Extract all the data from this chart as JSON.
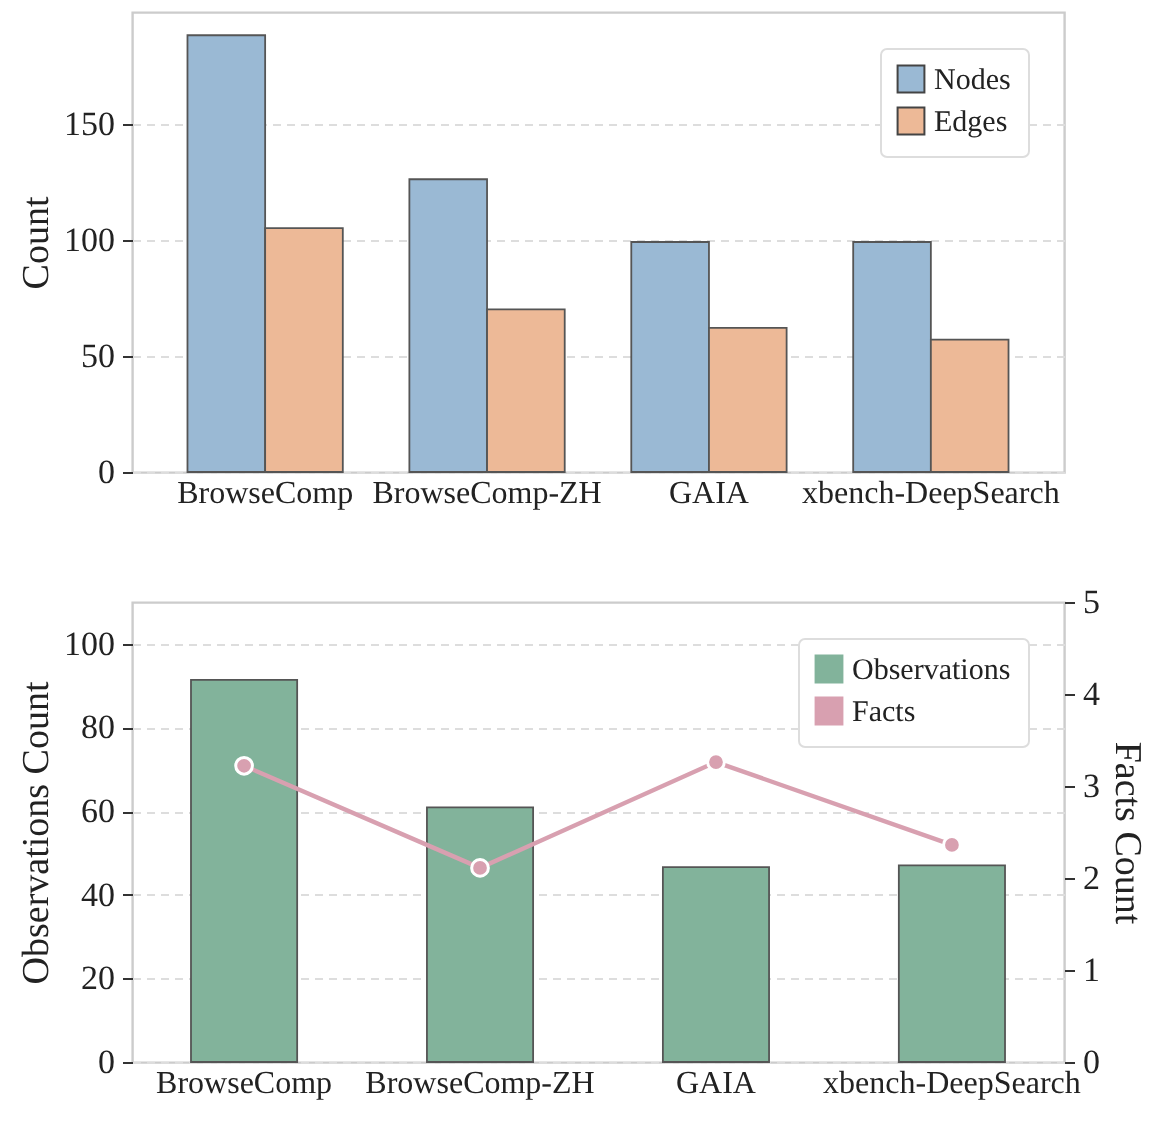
{
  "chart_data": [
    {
      "type": "bar",
      "categories": [
        "BrowseComp",
        "BrowseComp-ZH",
        "GAIA",
        "xbench-DeepSearch"
      ],
      "ylabel": "Count",
      "ylim": [
        0,
        198
      ],
      "yticks": [
        0,
        50,
        100,
        150
      ],
      "grid": "y",
      "legend": "top right",
      "series": [
        {
          "name": "Nodes",
          "color": "#9ab9d4",
          "values": [
            188,
            126,
            99,
            99
          ]
        },
        {
          "name": "Edges",
          "color": "#edb997",
          "values": [
            105,
            70,
            62,
            57
          ]
        }
      ]
    },
    {
      "type": "bar",
      "categories": [
        "BrowseComp",
        "BrowseComp-ZH",
        "GAIA",
        "xbench-DeepSearch"
      ],
      "ylabel": "Observations Count",
      "y2label": "Facts Count",
      "ylim": [
        0,
        110
      ],
      "yticks": [
        0,
        20,
        40,
        60,
        80,
        100
      ],
      "y2lim": [
        0,
        5
      ],
      "y2ticks": [
        0,
        1,
        2,
        3,
        4,
        5
      ],
      "grid": "y",
      "legend": "top right",
      "marker": "circle",
      "series": [
        {
          "name": "Observations",
          "color": "#82b39b",
          "values": [
            91.4,
            60.9,
            46.6,
            47.0
          ]
        },
        {
          "name": "Facts",
          "type": "line",
          "axis": "y2",
          "color": "#d8a0b0",
          "values": [
            3.22,
            2.11,
            3.26,
            2.36
          ]
        }
      ]
    }
  ]
}
